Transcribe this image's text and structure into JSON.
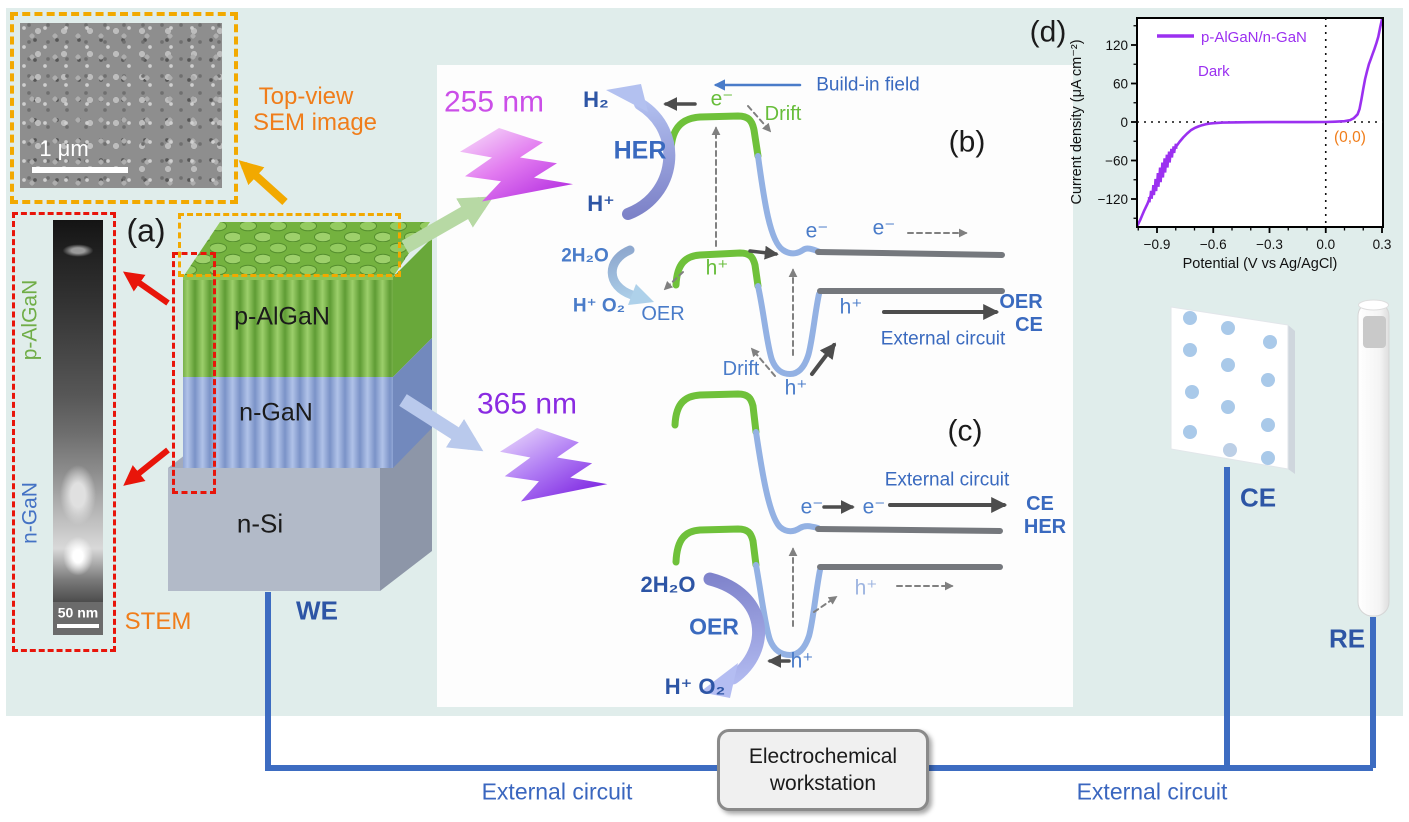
{
  "colors": {
    "background": "#e0edeb",
    "panel": "#fdfdfd",
    "accent_wire": "#3d6cc1",
    "orange": "#f07d1a",
    "amber_dash": "#f2a900",
    "red_dash": "#e8150a",
    "curve_purple": "#9b30f0",
    "green_band": "#6fc13a",
    "blue_band": "#93b1e3"
  },
  "panel_a": {
    "label": "(a)",
    "top_view_line1": "Top-view",
    "top_view_line2": "SEM image",
    "sem_scale": "1 μm",
    "stem_label": "STEM",
    "stem_scale": "50 nm",
    "side_p_algan": "p-AlGaN",
    "side_n_gan": "n-GaN",
    "p_algan": "p-AlGaN",
    "n_gan": "n-GaN",
    "n_si": "n-Si",
    "we": "WE"
  },
  "diagram_b": {
    "label": "(b)",
    "wavelength": "255 nm",
    "h2": "H₂",
    "her": "HER",
    "h_plus_left": "H⁺",
    "e_green": "e⁻",
    "build_in_field": "Build-in field",
    "drift_green": "Drift",
    "e_1": "e⁻",
    "e_2": "e⁻",
    "water": "2H₂O",
    "h_green": "h⁺",
    "oer_small": "OER",
    "h_o2": "H⁺  O₂",
    "drift_blue": "Drift",
    "h_valley": "h⁺",
    "h_mid": "h⁺",
    "external_circuit": "External circuit",
    "oer_right": "OER",
    "ce_right": "CE"
  },
  "diagram_c": {
    "label": "(c)",
    "wavelength": "365 nm",
    "e_1": "e⁻",
    "e_2": "e⁻",
    "external_circuit": "External circuit",
    "ce": "CE",
    "her": "HER",
    "water": "2H₂O",
    "oer": "OER",
    "h_o2": "H⁺  O₂",
    "h_valley": "h⁺",
    "h_gray": "h⁺"
  },
  "bottom": {
    "workstation_line1": "Electrochemical",
    "workstation_line2": "workstation",
    "external_left": "External circuit",
    "external_right": "External circuit",
    "ce": "CE",
    "re": "RE"
  },
  "chart_data": {
    "type": "line",
    "panel_label": "(d)",
    "legend": "p-AlGaN/n-GaN",
    "annotation_dark": "Dark",
    "annotation_origin": "(0,0)",
    "xlabel": "Potential (V vs Ag/AgCl)",
    "ylabel": "Current density (μA cm⁻²)",
    "xlim": [
      -1.007,
      0.31
    ],
    "ylim": [
      -165,
      164
    ],
    "x_ticks": [
      -0.9,
      -0.6,
      -0.3,
      0.0,
      0.3
    ],
    "x_tick_labels": [
      "−0.9",
      "−0.6",
      "−0.3",
      "0.0",
      "0.3"
    ],
    "y_ticks": [
      120,
      60,
      0,
      -60,
      -120
    ],
    "y_tick_labels": [
      "120",
      "60",
      "0",
      "−60",
      "−120"
    ],
    "grid": false,
    "legend_position": "upper left",
    "line_color": "#9b30f0",
    "series": [
      {
        "name": "p-AlGaN/n-GaN",
        "points": [
          [
            -1.007,
            -163
          ],
          [
            -0.99,
            -153
          ],
          [
            -0.97,
            -139
          ],
          [
            -0.95,
            -127
          ],
          [
            -0.94,
            -119
          ],
          [
            -0.92,
            -107
          ],
          [
            -0.9,
            -94
          ],
          [
            -0.88,
            -81
          ],
          [
            -0.86,
            -69
          ],
          [
            -0.84,
            -58
          ],
          [
            -0.82,
            -48
          ],
          [
            -0.8,
            -39
          ],
          [
            -0.78,
            -31
          ],
          [
            -0.76,
            -24
          ],
          [
            -0.74,
            -18
          ],
          [
            -0.72,
            -13
          ],
          [
            -0.7,
            -9.5
          ],
          [
            -0.68,
            -7
          ],
          [
            -0.66,
            -5
          ],
          [
            -0.64,
            -3.5
          ],
          [
            -0.62,
            -2.5
          ],
          [
            -0.6,
            -1.8
          ],
          [
            -0.55,
            -1.0
          ],
          [
            -0.5,
            -0.6
          ],
          [
            -0.45,
            -0.4
          ],
          [
            -0.4,
            -0.3
          ],
          [
            -0.3,
            -0.2
          ],
          [
            -0.2,
            -0.1
          ],
          [
            -0.1,
            -0.1
          ],
          [
            0.0,
            0.0
          ],
          [
            0.05,
            0.4
          ],
          [
            0.1,
            1.2
          ],
          [
            0.13,
            3
          ],
          [
            0.15,
            6
          ],
          [
            0.16,
            9
          ],
          [
            0.17,
            12
          ],
          [
            0.18,
            20
          ],
          [
            0.19,
            35
          ],
          [
            0.2,
            52
          ],
          [
            0.21,
            67
          ],
          [
            0.22,
            79
          ],
          [
            0.23,
            90
          ],
          [
            0.24,
            98
          ],
          [
            0.25,
            106
          ],
          [
            0.26,
            114
          ],
          [
            0.27,
            123
          ],
          [
            0.28,
            133
          ],
          [
            0.29,
            147
          ],
          [
            0.3,
            160
          ],
          [
            0.305,
            164
          ]
        ]
      }
    ],
    "noise_region": {
      "from": -0.945,
      "to": -0.79,
      "amplitude_uA": 12
    }
  }
}
